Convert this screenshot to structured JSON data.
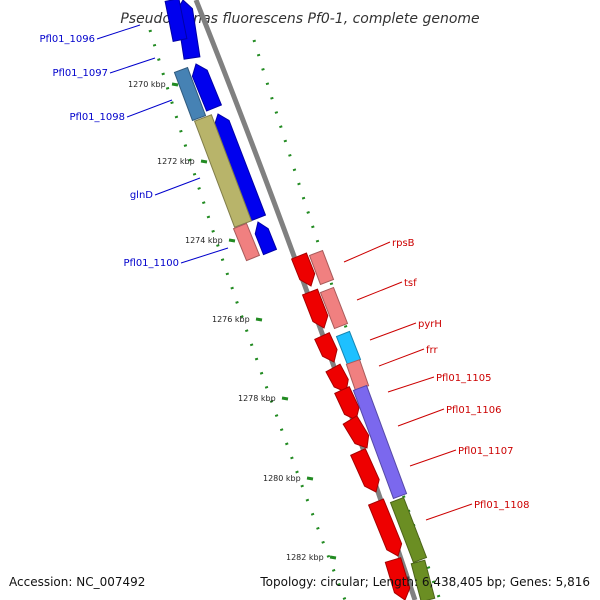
{
  "title": "Pseudomonas fluorescens Pf0-1, complete genome",
  "footer": {
    "accession": "Accession: NC_007492",
    "topology": "Topology: circular; Length: 6,438,405 bp; Genes: 5,816"
  },
  "colors": {
    "backbone": "#808080",
    "plus_strand": "#0000ee",
    "minus_strand": "#ee0000",
    "left_label": "#0000cc",
    "right_label": "#cc0000",
    "ticks": "#228b22"
  },
  "scale_ticks": [
    "1270 kbp",
    "1272 kbp",
    "1274 kbp",
    "1276 kbp",
    "1278 kbp",
    "1280 kbp",
    "1282 kbp"
  ],
  "left_genes": [
    {
      "label": "Pfl01_1096",
      "color": "#0000ee"
    },
    {
      "label": "Pfl01_1097",
      "color": "#0000ee"
    },
    {
      "label": "Pfl01_1098",
      "color": "#4682b4"
    },
    {
      "label": "glnD",
      "color": "#b8b46a"
    },
    {
      "label": "Pfl01_1100",
      "color": "#f08080"
    }
  ],
  "right_genes": [
    {
      "label": "rpsB",
      "color": "#f08080"
    },
    {
      "label": "tsf",
      "color": "#f08080"
    },
    {
      "label": "pyrH",
      "color": "#1ec0ff"
    },
    {
      "label": "frr",
      "color": "#f08080"
    },
    {
      "label": "Pfl01_1105",
      "color": "#7b68ee"
    },
    {
      "label": "Pfl01_1106",
      "color": "#7b68ee"
    },
    {
      "label": "Pfl01_1107",
      "color": "#7b68ee"
    },
    {
      "label": "Pfl01_1108",
      "color": "#6b8e23"
    }
  ]
}
